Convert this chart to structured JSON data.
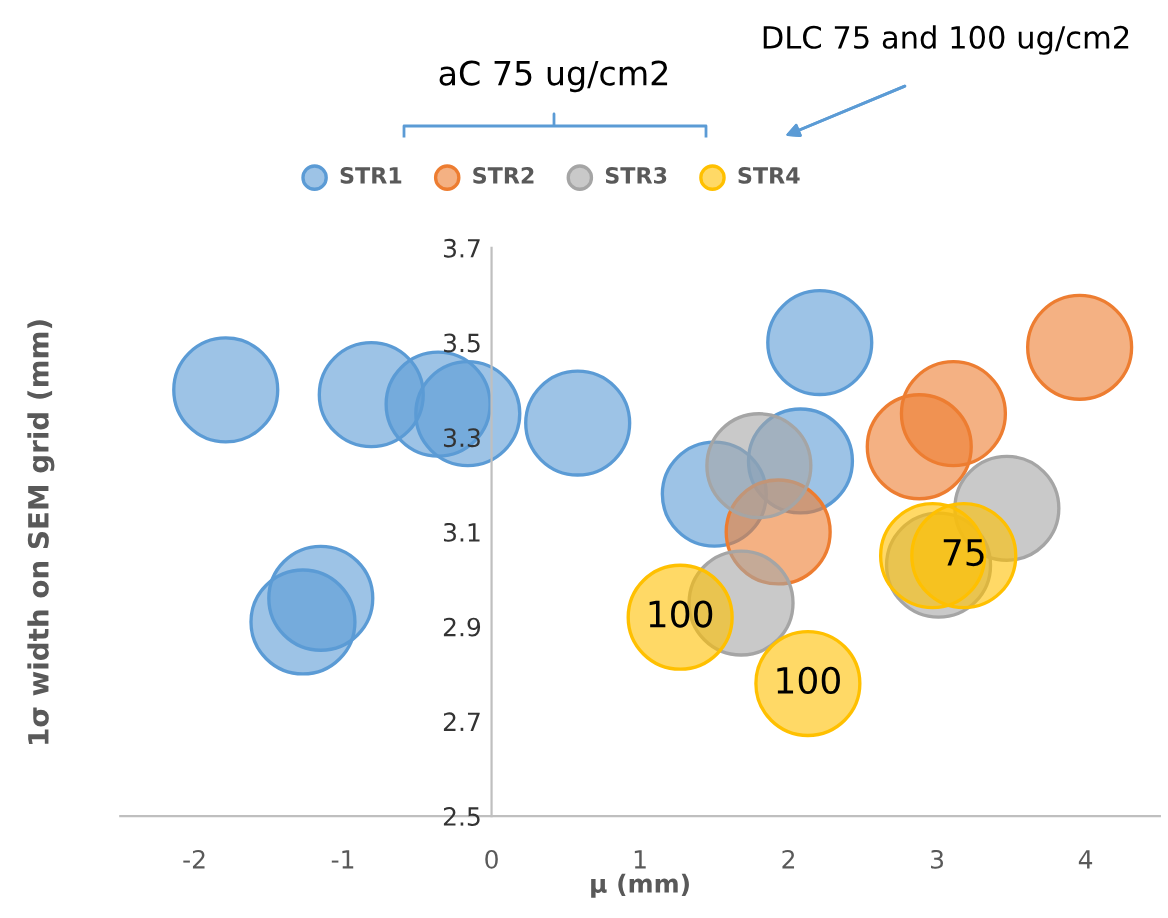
{
  "chart_data": {
    "type": "bubble",
    "xlabel": "μ (mm)",
    "ylabel": "1σ width on SEM grid (mm)",
    "xlim": [
      -2.5,
      4.5
    ],
    "xticks": [
      -2,
      -1,
      0,
      1,
      2,
      3,
      4
    ],
    "ylim": [
      2.5,
      3.7
    ],
    "yticks": [
      2.5,
      2.7,
      2.9,
      3.1,
      3.3,
      3.5,
      3.7
    ],
    "grid": false,
    "legend": "top",
    "marker": "circle",
    "annotations": [
      "aC 75 ug/cm2",
      "DLC 75 and 100 ug/cm2",
      {
        "text": "100",
        "x": 1.27,
        "y": 2.92
      },
      {
        "text": "100",
        "x": 2.13,
        "y": 2.78
      },
      {
        "text": "75",
        "x": 3.18,
        "y": 3.05
      }
    ],
    "series": [
      {
        "name": "STR1",
        "color": "#5b9bd5",
        "x": [
          -1.79,
          -0.81,
          -0.36,
          -0.16,
          0.58,
          -1.27,
          -1.15,
          2.21,
          2.08,
          1.5
        ],
        "values": [
          3.4,
          3.39,
          3.37,
          3.35,
          3.33,
          2.91,
          2.96,
          3.5,
          3.25,
          3.18
        ],
        "sizes": [
          1,
          1,
          1,
          1,
          1,
          1,
          1,
          1,
          1,
          1
        ]
      },
      {
        "name": "STR2",
        "color": "#ed7d31",
        "x": [
          3.96,
          3.11,
          2.88,
          1.93
        ],
        "values": [
          3.49,
          3.35,
          3.28,
          3.1
        ],
        "sizes": [
          1,
          1,
          1,
          1
        ]
      },
      {
        "name": "STR3",
        "color": "#a5a5a5",
        "x": [
          1.8,
          3.47,
          1.68,
          3.01
        ],
        "values": [
          3.24,
          3.15,
          2.95,
          3.03
        ],
        "sizes": [
          1,
          1,
          1,
          1
        ]
      },
      {
        "name": "STR4",
        "color": "#ffc000",
        "x": [
          1.27,
          2.13,
          2.97,
          3.18
        ],
        "values": [
          2.92,
          2.78,
          3.05,
          3.05
        ],
        "sizes": [
          1,
          1,
          1,
          1
        ]
      }
    ]
  }
}
